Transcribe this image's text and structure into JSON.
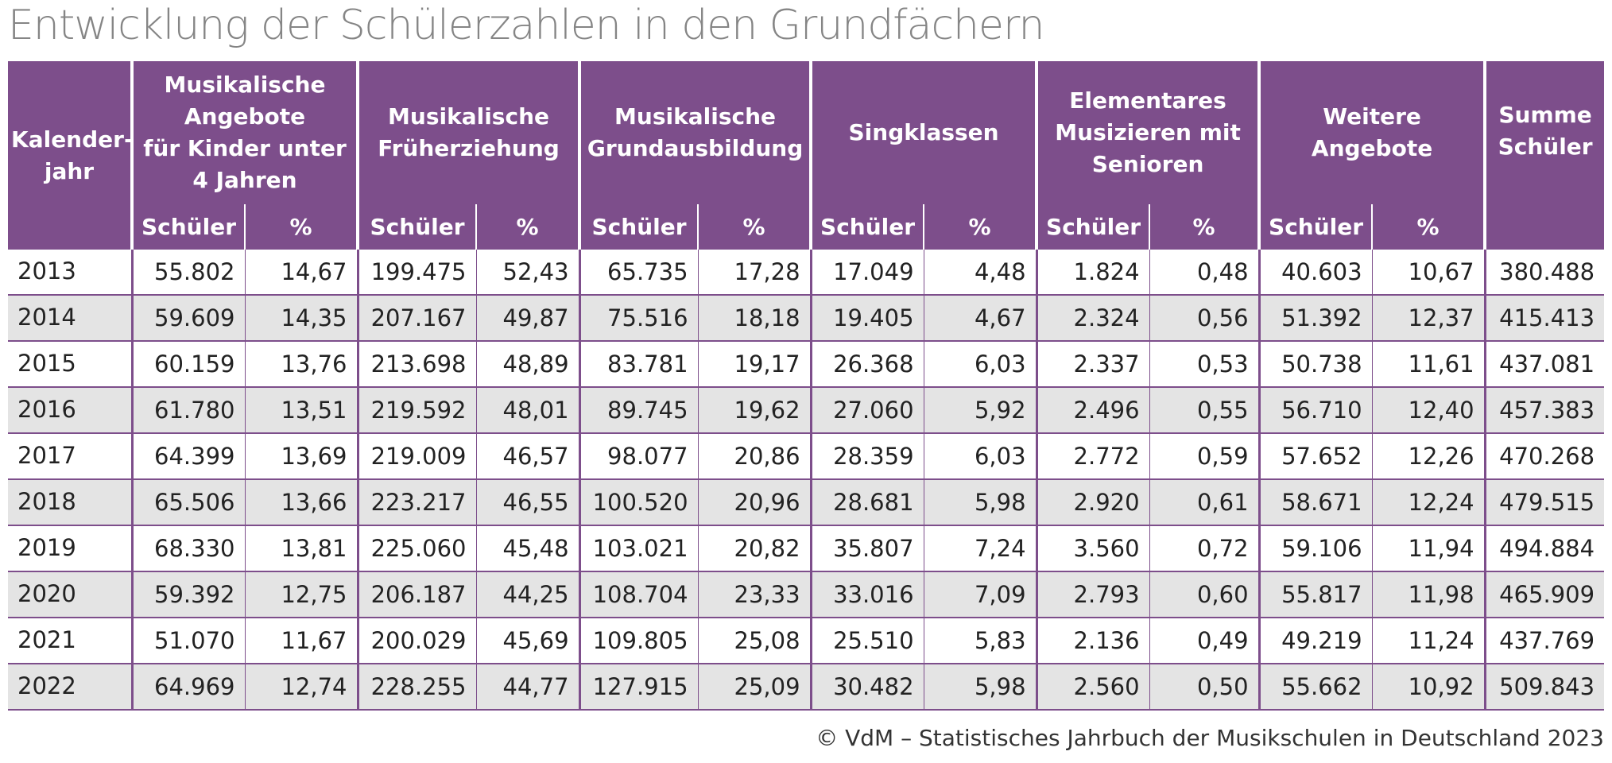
{
  "title": "Entwicklung der Schülerzahlen in den Grundfächern",
  "source": "© VdM – Statistisches Jahrbuch der Musikschulen in Deutschland 2023",
  "colors": {
    "header_bg": "#7d4e8b",
    "stripe": "#e4e4e4",
    "title": "#858585"
  },
  "table": {
    "year_header": "Kalender-\njahr",
    "groups": [
      {
        "label": "Musikalische\nAngebote\nfür Kinder unter\n4 Jahren"
      },
      {
        "label": "Musikalische\nFrüherziehung"
      },
      {
        "label": "Musikalische\nGrundausbildung"
      },
      {
        "label": "Singklassen"
      },
      {
        "label": "Elementares\nMusizieren mit\nSenioren"
      },
      {
        "label": "Weitere\nAngebote"
      }
    ],
    "sum_header": "Summe\nSchüler",
    "sub_students": "Schüler",
    "sub_percent": "%",
    "rows": [
      {
        "year": "2013",
        "cells": [
          "55.802",
          "14,67",
          "199.475",
          "52,43",
          "65.735",
          "17,28",
          "17.049",
          "4,48",
          "1.824",
          "0,48",
          "40.603",
          "10,67"
        ],
        "sum": "380.488"
      },
      {
        "year": "2014",
        "cells": [
          "59.609",
          "14,35",
          "207.167",
          "49,87",
          "75.516",
          "18,18",
          "19.405",
          "4,67",
          "2.324",
          "0,56",
          "51.392",
          "12,37"
        ],
        "sum": "415.413"
      },
      {
        "year": "2015",
        "cells": [
          "60.159",
          "13,76",
          "213.698",
          "48,89",
          "83.781",
          "19,17",
          "26.368",
          "6,03",
          "2.337",
          "0,53",
          "50.738",
          "11,61"
        ],
        "sum": "437.081"
      },
      {
        "year": "2016",
        "cells": [
          "61.780",
          "13,51",
          "219.592",
          "48,01",
          "89.745",
          "19,62",
          "27.060",
          "5,92",
          "2.496",
          "0,55",
          "56.710",
          "12,40"
        ],
        "sum": "457.383"
      },
      {
        "year": "2017",
        "cells": [
          "64.399",
          "13,69",
          "219.009",
          "46,57",
          "98.077",
          "20,86",
          "28.359",
          "6,03",
          "2.772",
          "0,59",
          "57.652",
          "12,26"
        ],
        "sum": "470.268"
      },
      {
        "year": "2018",
        "cells": [
          "65.506",
          "13,66",
          "223.217",
          "46,55",
          "100.520",
          "20,96",
          "28.681",
          "5,98",
          "2.920",
          "0,61",
          "58.671",
          "12,24"
        ],
        "sum": "479.515"
      },
      {
        "year": "2019",
        "cells": [
          "68.330",
          "13,81",
          "225.060",
          "45,48",
          "103.021",
          "20,82",
          "35.807",
          "7,24",
          "3.560",
          "0,72",
          "59.106",
          "11,94"
        ],
        "sum": "494.884"
      },
      {
        "year": "2020",
        "cells": [
          "59.392",
          "12,75",
          "206.187",
          "44,25",
          "108.704",
          "23,33",
          "33.016",
          "7,09",
          "2.793",
          "0,60",
          "55.817",
          "11,98"
        ],
        "sum": "465.909"
      },
      {
        "year": "2021",
        "cells": [
          "51.070",
          "11,67",
          "200.029",
          "45,69",
          "109.805",
          "25,08",
          "25.510",
          "5,83",
          "2.136",
          "0,49",
          "49.219",
          "11,24"
        ],
        "sum": "437.769"
      },
      {
        "year": "2022",
        "cells": [
          "64.969",
          "12,74",
          "228.255",
          "44,77",
          "127.915",
          "25,09",
          "30.482",
          "5,98",
          "2.560",
          "0,50",
          "55.662",
          "10,92"
        ],
        "sum": "509.843"
      }
    ]
  }
}
